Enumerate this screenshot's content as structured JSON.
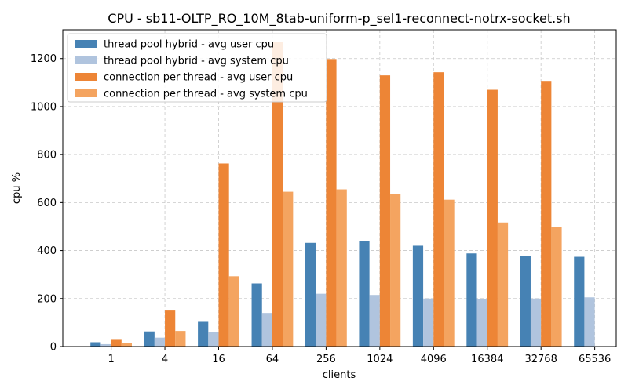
{
  "chart_data": {
    "type": "bar",
    "title": "CPU - sb11-OLTP_RO_10M_8tab-uniform-p_sel1-reconnect-notrx-socket.sh",
    "xlabel": "clients",
    "ylabel": "cpu %",
    "categories": [
      "1",
      "4",
      "16",
      "64",
      "256",
      "1024",
      "4096",
      "16384",
      "32768",
      "65536"
    ],
    "ylim": [
      0,
      1320
    ],
    "yticks": [
      0,
      200,
      400,
      600,
      800,
      1000,
      1200
    ],
    "grid": true,
    "legend_position": "top-left",
    "series": [
      {
        "name": "thread pool hybrid - avg user cpu",
        "color": "#4682b4",
        "values": [
          18,
          63,
          103,
          263,
          432,
          438,
          420,
          388,
          378,
          374
        ]
      },
      {
        "name": "thread pool hybrid - avg system cpu",
        "color": "#b0c4de",
        "values": [
          10,
          37,
          60,
          140,
          220,
          215,
          200,
          197,
          200,
          205
        ]
      },
      {
        "name": "connection per thread - avg user cpu",
        "color": "#ed8536",
        "values": [
          28,
          150,
          763,
          1268,
          1198,
          1130,
          1143,
          1070,
          1107,
          0
        ]
      },
      {
        "name": "connection per thread - avg system cpu",
        "color": "#f4a460",
        "values": [
          15,
          65,
          293,
          645,
          655,
          635,
          612,
          517,
          497,
          0
        ]
      }
    ]
  }
}
